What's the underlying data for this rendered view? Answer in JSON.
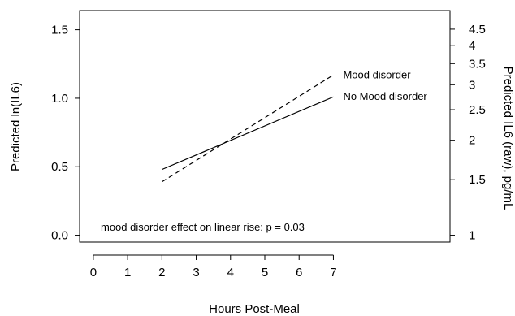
{
  "chart_data": {
    "type": "line",
    "xlabel": "Hours Post-Meal",
    "ylabel": "Predicted ln(IL6)",
    "y2label": "Predicted IL6 (raw), pg/mL",
    "xlim": [
      -0.4,
      10.4
    ],
    "ylim": [
      -0.05,
      1.64
    ],
    "x_ticks": [
      0,
      1,
      2,
      3,
      4,
      5,
      6,
      7
    ],
    "y_ticks": [
      0.0,
      0.5,
      1.0,
      1.5
    ],
    "y_tick_labels": [
      "0.0",
      "0.5",
      "1.0",
      "1.5"
    ],
    "y2_ticks": [
      1,
      1.5,
      2,
      2.5,
      3,
      3.5,
      4,
      4.5
    ],
    "y2_tick_labels": [
      "1",
      "1.5",
      "2",
      "2.5",
      "3",
      "3.5",
      "4",
      "4.5"
    ],
    "y2_scale": "log (right axis shows exp of left axis)",
    "grid": false,
    "series": [
      {
        "name": "Mood disorder",
        "style": "dashed",
        "x": [
          2,
          7
        ],
        "y": [
          0.39,
          1.17
        ]
      },
      {
        "name": "No Mood disorder",
        "style": "solid",
        "x": [
          2,
          7
        ],
        "y": [
          0.48,
          1.01
        ]
      }
    ],
    "annotation": "mood disorder effect on linear rise: p = 0.03"
  }
}
